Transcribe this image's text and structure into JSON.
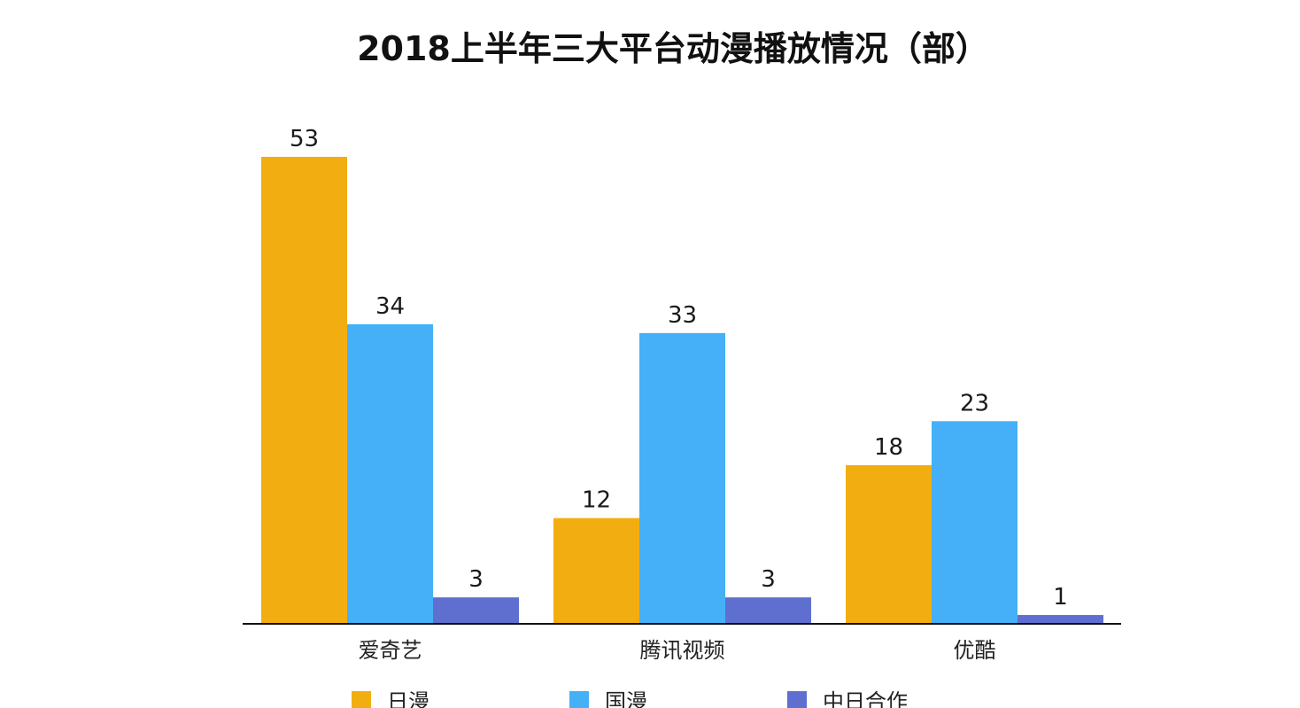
{
  "chart_data": {
    "type": "bar",
    "title": "2018上半年三大平台动漫播放情况（部）",
    "categories": [
      "爱奇艺",
      "腾讯视频",
      "优酷"
    ],
    "series": [
      {
        "name": "日漫",
        "values": [
          53,
          12,
          18
        ],
        "color": "#F2AE11"
      },
      {
        "name": "国漫",
        "values": [
          34,
          33,
          23
        ],
        "color": "#45B0F7"
      },
      {
        "name": "中日合作",
        "values": [
          3,
          3,
          1
        ],
        "color": "#5F6FCF"
      }
    ],
    "ylim": [
      0,
      53
    ],
    "grid": false,
    "legend": "bottom",
    "xlabel": "",
    "ylabel": ""
  }
}
